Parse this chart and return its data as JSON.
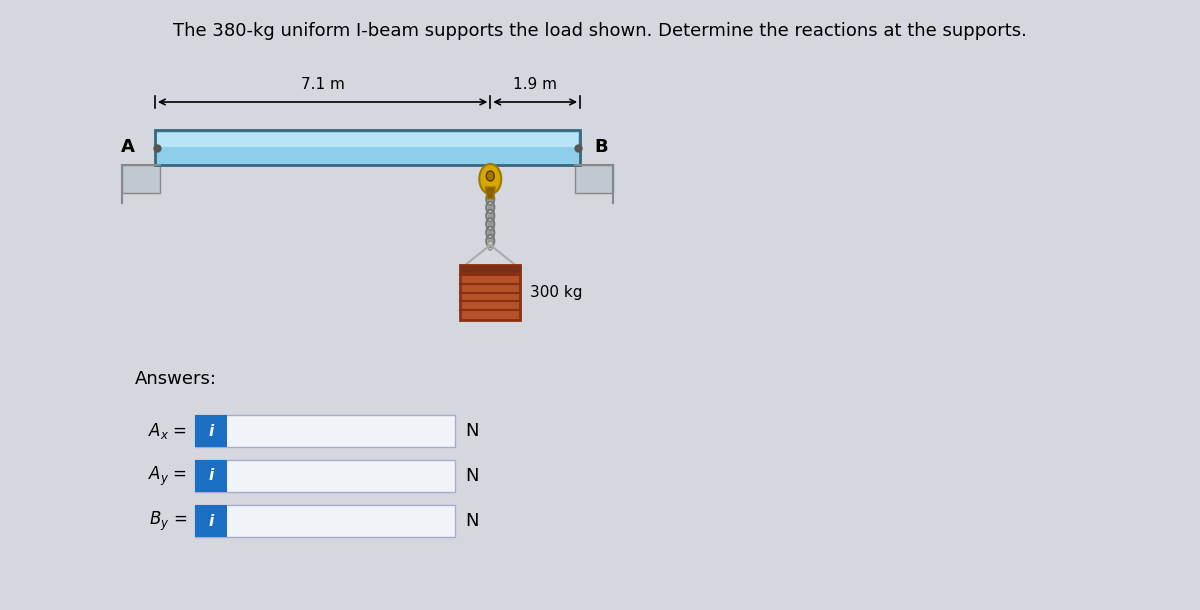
{
  "title": "The 380-kg uniform I-beam supports the load shown. Determine the reactions at the supports.",
  "title_fontsize": 13,
  "bg_color": "#d4d8de",
  "beam_color": "#8dcfea",
  "beam_border_color": "#3a6680",
  "dim_71": "7.1 m",
  "dim_19": "1.9 m",
  "load_label": "300 kg",
  "answers_label": "Answers:",
  "ax_label": "A_x =",
  "ay_label": "A_y =",
  "by_label": "B_y =",
  "unit": "N",
  "input_box_color": "#f0f4f8",
  "input_btn_color": "#1a6fc4",
  "input_btn_text": "i",
  "support_color": "#c0c8d0",
  "load_box_color": "#b5522a",
  "load_stripe_color": "#8a3010",
  "rope_color": "#888888",
  "hook_color": "#d4a800",
  "hook_dark": "#a07800",
  "pin_color": "#555555"
}
